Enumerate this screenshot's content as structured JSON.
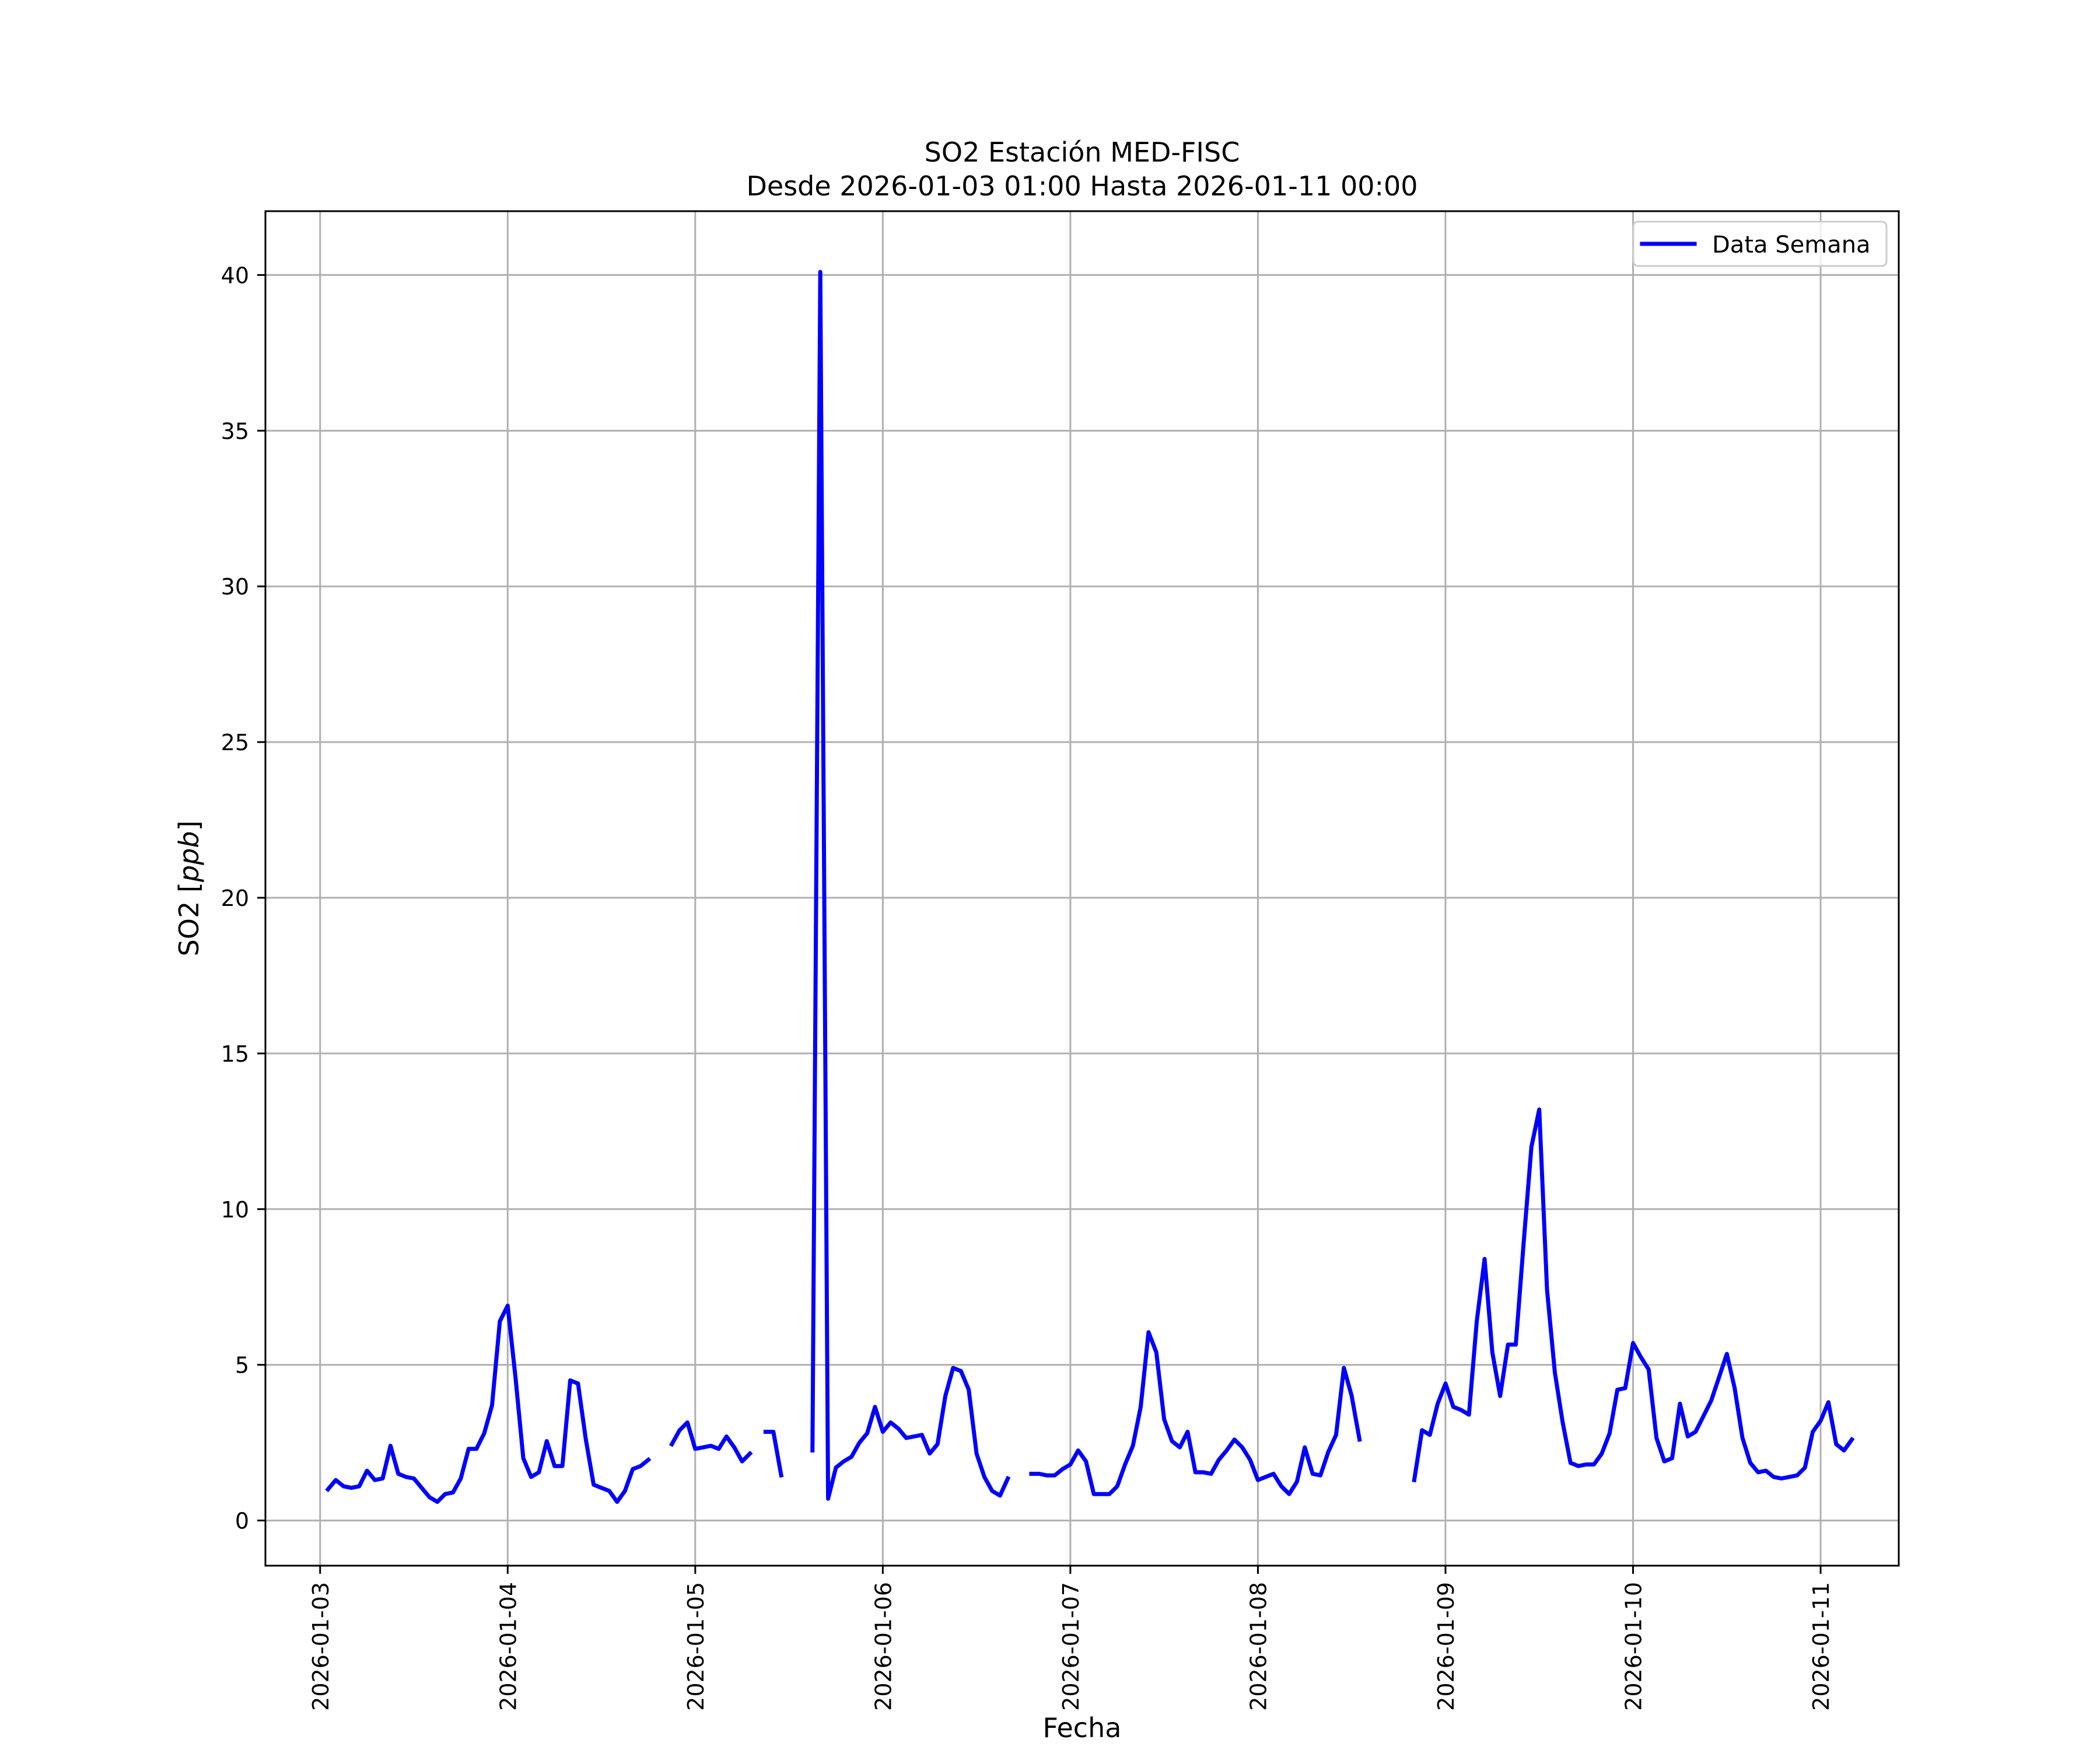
{
  "chart_data": {
    "type": "line",
    "title_line1": "SO2 Estación MED-FISC",
    "title_line2": "Desde 2026-01-03 01:00 Hasta 2026-01-11 00:00",
    "xlabel": "Fecha",
    "ylabel_prefix": "SO2 [",
    "ylabel_unit": "ppb",
    "ylabel_suffix": "]",
    "xlim": [
      "2026-01-02 17:00",
      "2026-01-11 10:00"
    ],
    "ylim": [
      -1.45,
      42.05
    ],
    "grid": true,
    "legend_position": "top-right",
    "x_ticks": [
      "2026-01-03",
      "2026-01-04",
      "2026-01-05",
      "2026-01-06",
      "2026-01-07",
      "2026-01-08",
      "2026-01-09",
      "2026-01-10",
      "2026-01-11"
    ],
    "y_ticks": [
      0,
      5,
      10,
      15,
      20,
      25,
      30,
      35,
      40
    ],
    "line_color": "#0000ff",
    "series": [
      {
        "name": "Data Semana",
        "x_start": "2026-01-03 01:00",
        "x_step_hours": 1,
        "values": [
          1.0,
          1.3,
          1.1,
          1.05,
          1.1,
          1.6,
          1.3,
          1.35,
          2.4,
          1.5,
          1.4,
          1.35,
          1.05,
          0.75,
          0.6,
          0.85,
          0.9,
          1.35,
          2.3,
          2.3,
          2.8,
          3.7,
          6.4,
          6.9,
          4.6,
          2.0,
          1.4,
          1.55,
          2.55,
          1.75,
          1.75,
          4.5,
          4.4,
          2.6,
          1.15,
          1.05,
          0.95,
          0.6,
          0.95,
          1.65,
          1.75,
          1.95,
          null,
          null,
          2.45,
          2.9,
          3.15,
          2.3,
          2.35,
          2.4,
          2.3,
          2.7,
          2.35,
          1.9,
          2.15,
          null,
          2.85,
          2.85,
          1.45,
          null,
          null,
          null,
          2.25,
          40.1,
          0.7,
          1.7,
          1.9,
          2.05,
          2.5,
          2.8,
          3.65,
          2.85,
          3.15,
          2.95,
          2.65,
          2.7,
          2.75,
          2.15,
          2.45,
          4.0,
          4.9,
          4.8,
          4.2,
          2.15,
          1.4,
          0.95,
          0.8,
          1.35,
          null,
          null,
          1.5,
          1.5,
          1.45,
          1.45,
          1.65,
          1.8,
          2.25,
          1.9,
          0.85,
          0.85,
          0.85,
          1.1,
          1.8,
          2.4,
          3.65,
          6.05,
          5.4,
          3.25,
          2.55,
          2.35,
          2.85,
          1.55,
          1.55,
          1.5,
          1.95,
          2.25,
          2.6,
          2.35,
          1.95,
          1.3,
          1.4,
          1.5,
          1.1,
          0.85,
          1.25,
          2.35,
          1.5,
          1.45,
          2.2,
          2.75,
          4.9,
          4.0,
          2.6,
          null,
          null,
          null,
          null,
          null,
          null,
          1.3,
          2.9,
          2.75,
          3.75,
          4.4,
          3.65,
          3.55,
          3.4,
          6.4,
          8.4,
          5.4,
          4.0,
          5.65,
          5.65,
          8.9,
          12.0,
          13.2,
          7.4,
          4.75,
          3.15,
          1.85,
          1.75,
          1.8,
          1.8,
          2.15,
          2.8,
          4.2,
          4.25,
          5.7,
          5.25,
          4.85,
          2.65,
          1.9,
          2.0,
          3.75,
          2.7,
          2.85,
          3.35,
          3.85,
          4.6,
          5.35,
          4.25,
          2.65,
          1.85,
          1.55,
          1.6,
          1.4,
          1.35,
          1.4,
          1.45,
          1.7,
          2.85,
          3.2,
          3.8,
          2.45,
          2.25,
          2.6
        ]
      }
    ]
  }
}
